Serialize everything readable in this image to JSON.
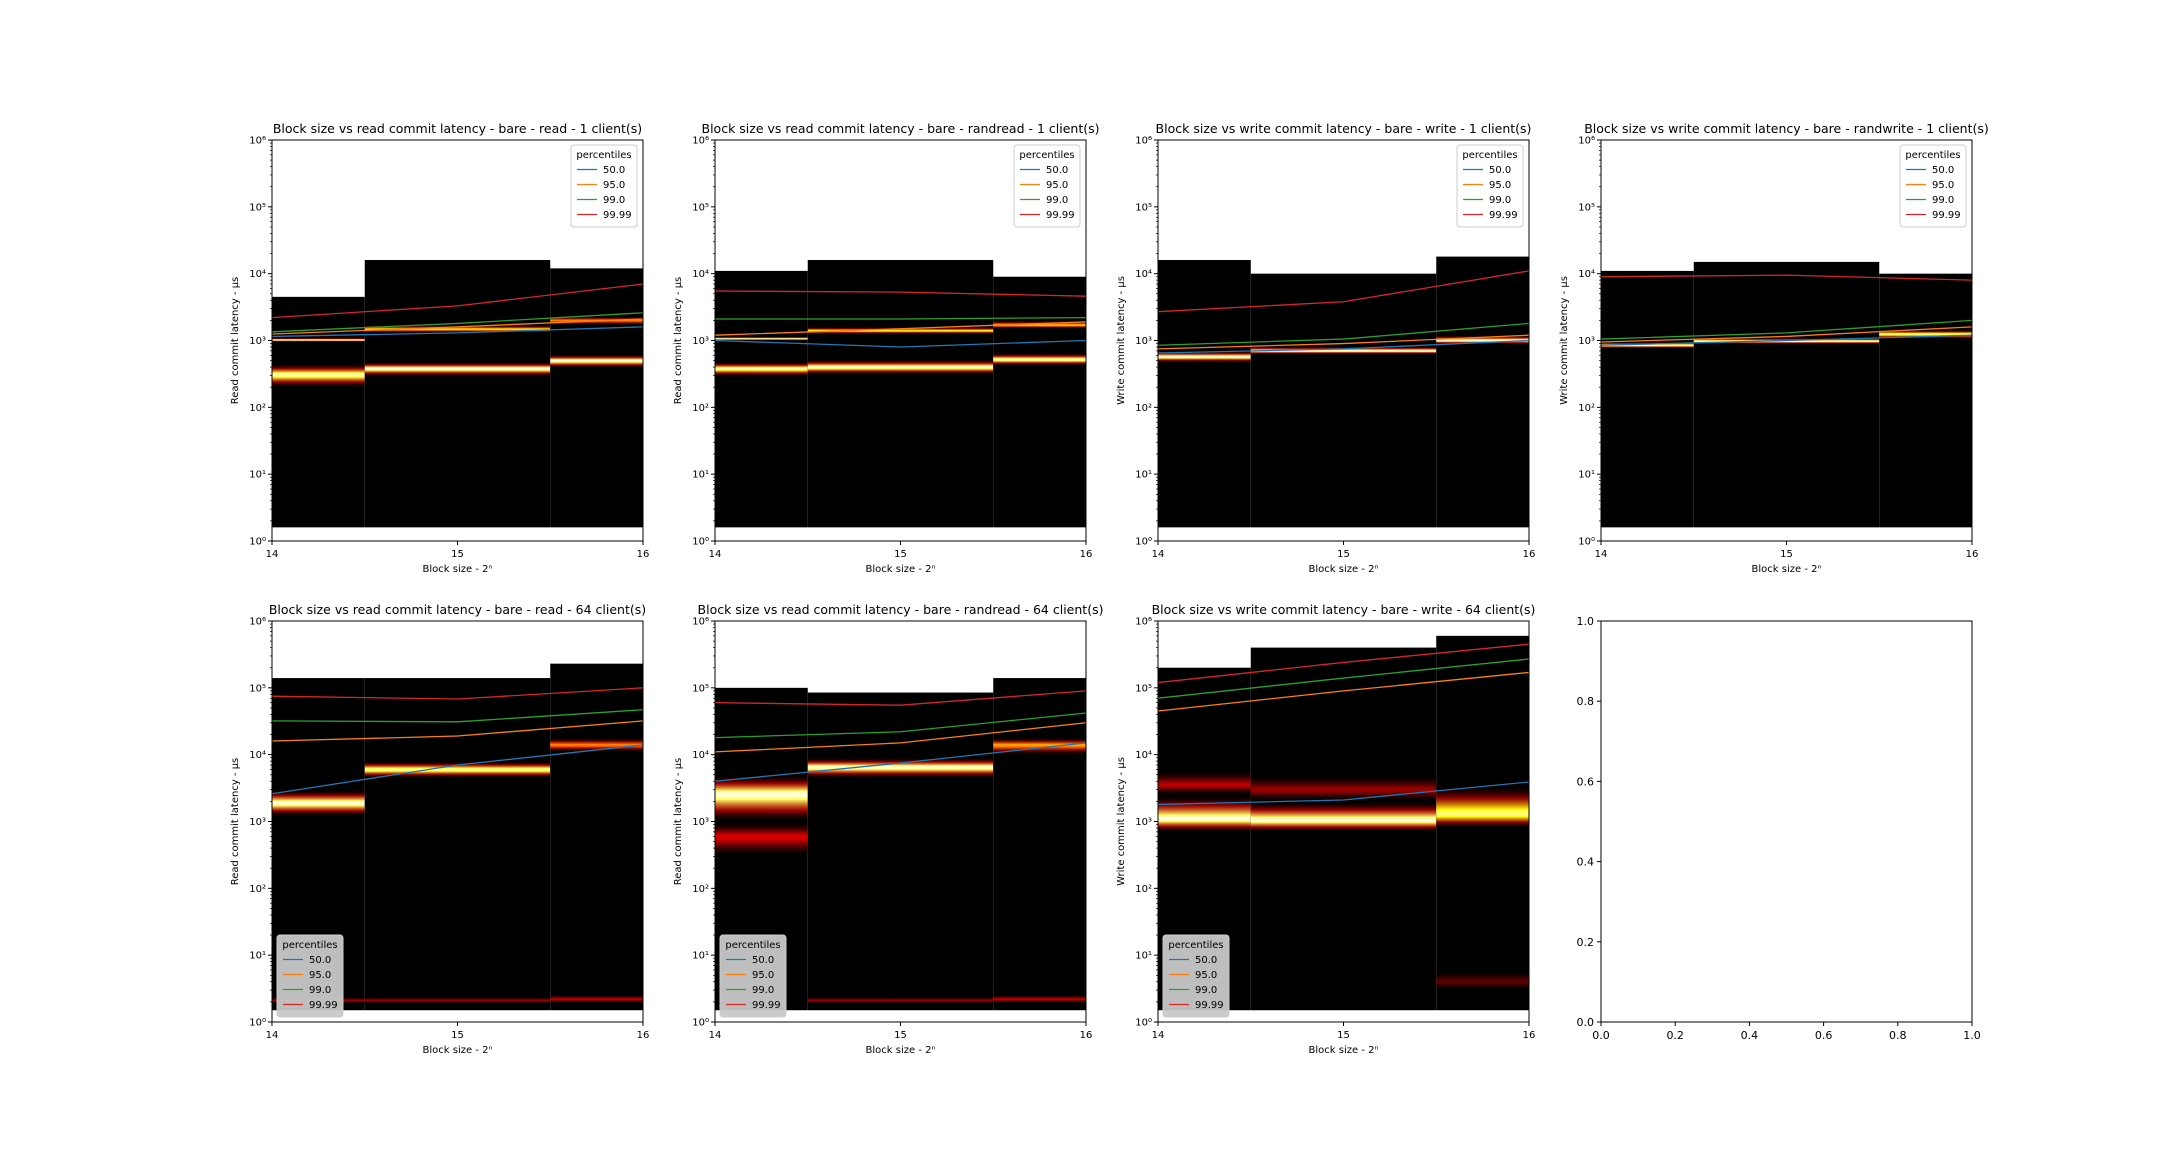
{
  "legend_title": "percentiles",
  "percentiles": [
    "50.0",
    "95.0",
    "99.0",
    "99.99"
  ],
  "colors": {
    "p50": "#1f77b4",
    "p95": "#ff7f0e",
    "p99": "#2ca02c",
    "p9999": "#d62728",
    "heat_bg": "#000000",
    "legend_bg_dark": "#c8c8c8"
  },
  "x_label": "Block size - 2ⁿ",
  "x_ticks": [
    "14",
    "15",
    "16"
  ],
  "y_ticks": [
    "10⁰",
    "10¹",
    "10²",
    "10³",
    "10⁴",
    "10⁵",
    "10⁶"
  ],
  "chart_data": [
    {
      "type": "heatmap",
      "title": "Block size vs read commit latency - bare - read - 1 client(s)",
      "ylabel": "Read commit latency - μs",
      "xlabel": "Block size - 2ⁿ",
      "x": [
        14,
        15,
        16
      ],
      "xlim": [
        14,
        16
      ],
      "ylim": [
        1,
        1000000
      ],
      "yscale": "log",
      "legend": "upper right",
      "columns": [
        {
          "x": [
            14,
            14.5
          ],
          "top": 4500,
          "bottom": 1.6,
          "bands": [
            {
              "lo": 200,
              "hi": 450,
              "peak": 310,
              "inten": 0.95
            },
            {
              "lo": 950,
              "hi": 1100,
              "peak": 1020,
              "inten": 1.0
            }
          ]
        },
        {
          "x": [
            14.5,
            15.5
          ],
          "top": 16000,
          "bottom": 1.6,
          "bands": [
            {
              "lo": 290,
              "hi": 480,
              "peak": 380,
              "inten": 1.0
            },
            {
              "lo": 1300,
              "hi": 1700,
              "peak": 1480,
              "inten": 0.75
            }
          ]
        },
        {
          "x": [
            15.5,
            16
          ],
          "top": 12000,
          "bottom": 1.6,
          "bands": [
            {
              "lo": 390,
              "hi": 620,
              "peak": 500,
              "inten": 1.0
            },
            {
              "lo": 1700,
              "hi": 2300,
              "peak": 2000,
              "inten": 0.6
            }
          ]
        }
      ],
      "series": [
        {
          "name": "50.0",
          "values": [
            1150,
            1300,
            1600
          ]
        },
        {
          "name": "95.0",
          "values": [
            1250,
            1600,
            2100
          ]
        },
        {
          "name": "99.0",
          "values": [
            1350,
            1800,
            2600
          ]
        },
        {
          "name": "99.99",
          "values": [
            2200,
            3300,
            7000
          ]
        }
      ]
    },
    {
      "type": "heatmap",
      "title": "Block size vs read commit latency - bare - randread - 1 client(s)",
      "ylabel": "Read commit latency - μs",
      "xlabel": "Block size - 2ⁿ",
      "x": [
        14,
        15,
        16
      ],
      "xlim": [
        14,
        16
      ],
      "ylim": [
        1,
        1000000
      ],
      "yscale": "log",
      "legend": "upper right",
      "columns": [
        {
          "x": [
            14,
            14.5
          ],
          "top": 11000,
          "bottom": 1.6,
          "bands": [
            {
              "lo": 290,
              "hi": 480,
              "peak": 380,
              "inten": 0.95
            },
            {
              "lo": 1000,
              "hi": 1150,
              "peak": 1060,
              "inten": 1.0
            }
          ]
        },
        {
          "x": [
            14.5,
            15.5
          ],
          "top": 16000,
          "bottom": 1.6,
          "bands": [
            {
              "lo": 310,
              "hi": 520,
              "peak": 400,
              "inten": 1.0
            },
            {
              "lo": 1250,
              "hi": 1600,
              "peak": 1400,
              "inten": 0.8
            }
          ]
        },
        {
          "x": [
            15.5,
            16
          ],
          "top": 9000,
          "bottom": 1.6,
          "bands": [
            {
              "lo": 420,
              "hi": 650,
              "peak": 520,
              "inten": 1.0
            },
            {
              "lo": 1500,
              "hi": 2000,
              "peak": 1700,
              "inten": 0.7
            }
          ]
        }
      ],
      "series": [
        {
          "name": "50.0",
          "values": [
            1000,
            800,
            1000
          ]
        },
        {
          "name": "95.0",
          "values": [
            1200,
            1500,
            1900
          ]
        },
        {
          "name": "99.0",
          "values": [
            2100,
            2100,
            2200
          ]
        },
        {
          "name": "99.99",
          "values": [
            5500,
            5300,
            4600
          ]
        }
      ]
    },
    {
      "type": "heatmap",
      "title": "Block size vs write commit latency - bare - write - 1 client(s)",
      "ylabel": "Write commit latency - μs",
      "xlabel": "Block size - 2ⁿ",
      "x": [
        14,
        15,
        16
      ],
      "xlim": [
        14,
        16
      ],
      "ylim": [
        1,
        1000000
      ],
      "yscale": "log",
      "legend": "upper right",
      "columns": [
        {
          "x": [
            14,
            14.5
          ],
          "top": 16000,
          "bottom": 1.6,
          "bands": [
            {
              "lo": 470,
              "hi": 700,
              "peak": 570,
              "inten": 1.0
            }
          ]
        },
        {
          "x": [
            14.5,
            15.5
          ],
          "top": 10000,
          "bottom": 1.6,
          "bands": [
            {
              "lo": 620,
              "hi": 820,
              "peak": 700,
              "inten": 1.0
            }
          ]
        },
        {
          "x": [
            15.5,
            16
          ],
          "top": 18000,
          "bottom": 1.6,
          "bands": [
            {
              "lo": 880,
              "hi": 1200,
              "peak": 1000,
              "inten": 1.0
            }
          ]
        }
      ],
      "series": [
        {
          "name": "50.0",
          "values": [
            650,
            750,
            1000
          ]
        },
        {
          "name": "95.0",
          "values": [
            750,
            900,
            1200
          ]
        },
        {
          "name": "99.0",
          "values": [
            850,
            1050,
            1800
          ]
        },
        {
          "name": "99.99",
          "values": [
            2700,
            3800,
            11000
          ]
        }
      ]
    },
    {
      "type": "heatmap",
      "title": "Block size vs write commit latency - bare - randwrite - 1 client(s)",
      "ylabel": "Write commit latency - μs",
      "xlabel": "Block size - 2ⁿ",
      "x": [
        14,
        15,
        16
      ],
      "xlim": [
        14,
        16
      ],
      "ylim": [
        1,
        1000000
      ],
      "yscale": "log",
      "legend": "upper right",
      "columns": [
        {
          "x": [
            14,
            14.5
          ],
          "top": 11000,
          "bottom": 1.6,
          "bands": [
            {
              "lo": 760,
              "hi": 950,
              "peak": 850,
              "inten": 1.0
            }
          ]
        },
        {
          "x": [
            14.5,
            15.5
          ],
          "top": 15000,
          "bottom": 1.6,
          "bands": [
            {
              "lo": 880,
              "hi": 1100,
              "peak": 980,
              "inten": 1.0
            }
          ]
        },
        {
          "x": [
            15.5,
            16
          ],
          "top": 10000,
          "bottom": 1.6,
          "bands": [
            {
              "lo": 1050,
              "hi": 1450,
              "peak": 1250,
              "inten": 0.9
            }
          ]
        }
      ],
      "series": [
        {
          "name": "50.0",
          "values": [
            850,
            1000,
            1200
          ]
        },
        {
          "name": "95.0",
          "values": [
            950,
            1150,
            1600
          ]
        },
        {
          "name": "99.0",
          "values": [
            1050,
            1300,
            2000
          ]
        },
        {
          "name": "99.99",
          "values": [
            9000,
            9500,
            8000
          ]
        }
      ]
    },
    {
      "type": "heatmap",
      "title": "Block size vs read commit latency - bare - read - 64 client(s)",
      "ylabel": "Read commit latency - μs",
      "xlabel": "Block size - 2ⁿ",
      "x": [
        14,
        15,
        16
      ],
      "xlim": [
        14,
        16
      ],
      "ylim": [
        1,
        1000000
      ],
      "yscale": "log",
      "legend": "lower left",
      "columns": [
        {
          "x": [
            14,
            14.5
          ],
          "top": 140000,
          "bottom": 1.5,
          "bands": [
            {
              "lo": 1200,
              "hi": 3000,
              "peak": 1900,
              "inten": 1.0
            },
            {
              "lo": 1.9,
              "hi": 2.4,
              "peak": 2.1,
              "inten": 0.25
            }
          ]
        },
        {
          "x": [
            14.5,
            15.5
          ],
          "top": 140000,
          "bottom": 1.5,
          "bands": [
            {
              "lo": 4500,
              "hi": 8000,
              "peak": 6000,
              "inten": 0.95
            },
            {
              "lo": 1.9,
              "hi": 2.4,
              "peak": 2.1,
              "inten": 0.25
            }
          ]
        },
        {
          "x": [
            15.5,
            16
          ],
          "top": 230000,
          "bottom": 1.5,
          "bands": [
            {
              "lo": 11000,
              "hi": 18000,
              "peak": 14000,
              "inten": 0.6
            },
            {
              "lo": 1.9,
              "hi": 2.6,
              "peak": 2.2,
              "inten": 0.3
            }
          ]
        }
      ],
      "series": [
        {
          "name": "50.0",
          "values": [
            2600,
            7000,
            14000
          ]
        },
        {
          "name": "95.0",
          "values": [
            16000,
            19000,
            32000
          ]
        },
        {
          "name": "99.0",
          "values": [
            32000,
            31000,
            47000
          ]
        },
        {
          "name": "99.99",
          "values": [
            75000,
            68000,
            100000
          ]
        }
      ]
    },
    {
      "type": "heatmap",
      "title": "Block size vs read commit latency - bare - randread - 64 client(s)",
      "ylabel": "Read commit latency - μs",
      "xlabel": "Block size - 2ⁿ",
      "x": [
        14,
        15,
        16
      ],
      "xlim": [
        14,
        16
      ],
      "ylim": [
        1,
        1000000
      ],
      "yscale": "log",
      "legend": "lower left",
      "columns": [
        {
          "x": [
            14,
            14.5
          ],
          "top": 100000,
          "bottom": 1.5,
          "bands": [
            {
              "lo": 1000,
              "hi": 5000,
              "peak": 2600,
              "inten": 1.0
            },
            {
              "lo": 300,
              "hi": 1000,
              "peak": 600,
              "inten": 0.35
            }
          ]
        },
        {
          "x": [
            14.5,
            15.5
          ],
          "top": 85000,
          "bottom": 1.5,
          "bands": [
            {
              "lo": 4500,
              "hi": 9000,
              "peak": 6500,
              "inten": 1.0
            },
            {
              "lo": 1.9,
              "hi": 2.4,
              "peak": 2.1,
              "inten": 0.25
            }
          ]
        },
        {
          "x": [
            15.5,
            16
          ],
          "top": 140000,
          "bottom": 1.5,
          "bands": [
            {
              "lo": 10000,
              "hi": 18000,
              "peak": 14000,
              "inten": 0.65
            },
            {
              "lo": 1.9,
              "hi": 2.6,
              "peak": 2.2,
              "inten": 0.3
            }
          ]
        }
      ],
      "series": [
        {
          "name": "50.0",
          "values": [
            4000,
            7500,
            15000
          ]
        },
        {
          "name": "95.0",
          "values": [
            11000,
            15000,
            30000
          ]
        },
        {
          "name": "99.0",
          "values": [
            18000,
            22000,
            42000
          ]
        },
        {
          "name": "99.99",
          "values": [
            60000,
            55000,
            90000
          ]
        }
      ]
    },
    {
      "type": "heatmap",
      "title": "Block size vs write commit latency - bare - write - 64 client(s)",
      "ylabel": "Write commit latency - μs",
      "xlabel": "Block size - 2ⁿ",
      "x": [
        14,
        15,
        16
      ],
      "xlim": [
        14,
        16
      ],
      "ylim": [
        1,
        1000000
      ],
      "yscale": "log",
      "legend": "lower left",
      "columns": [
        {
          "x": [
            14,
            14.5
          ],
          "top": 200000,
          "bottom": 1.5,
          "bands": [
            {
              "lo": 700,
              "hi": 2500,
              "peak": 1100,
              "inten": 1.0
            },
            {
              "lo": 2500,
              "hi": 6000,
              "peak": 3500,
              "inten": 0.3
            }
          ]
        },
        {
          "x": [
            14.5,
            15.5
          ],
          "top": 400000,
          "bottom": 1.5,
          "bands": [
            {
              "lo": 700,
              "hi": 2000,
              "peak": 1050,
              "inten": 1.0
            },
            {
              "lo": 2000,
              "hi": 5000,
              "peak": 3000,
              "inten": 0.25
            }
          ]
        },
        {
          "x": [
            15.5,
            16
          ],
          "top": 600000,
          "bottom": 1.5,
          "bands": [
            {
              "lo": 800,
              "hi": 3500,
              "peak": 1300,
              "inten": 0.9
            },
            {
              "lo": 3,
              "hi": 6,
              "peak": 4,
              "inten": 0.15
            }
          ]
        }
      ],
      "series": [
        {
          "name": "50.0",
          "values": [
            1800,
            2100,
            3900
          ]
        },
        {
          "name": "95.0",
          "values": [
            45000,
            90000,
            170000
          ]
        },
        {
          "name": "99.0",
          "values": [
            70000,
            140000,
            270000
          ]
        },
        {
          "name": "99.99",
          "values": [
            120000,
            240000,
            450000
          ]
        }
      ]
    },
    {
      "type": "line",
      "title": "",
      "xlim": [
        0,
        1
      ],
      "ylim": [
        0,
        1
      ],
      "x_ticks": [
        "0.0",
        "0.2",
        "0.4",
        "0.6",
        "0.8",
        "1.0"
      ],
      "y_ticks": [
        "0.0",
        "0.2",
        "0.4",
        "0.6",
        "0.8",
        "1.0"
      ],
      "series": []
    }
  ]
}
